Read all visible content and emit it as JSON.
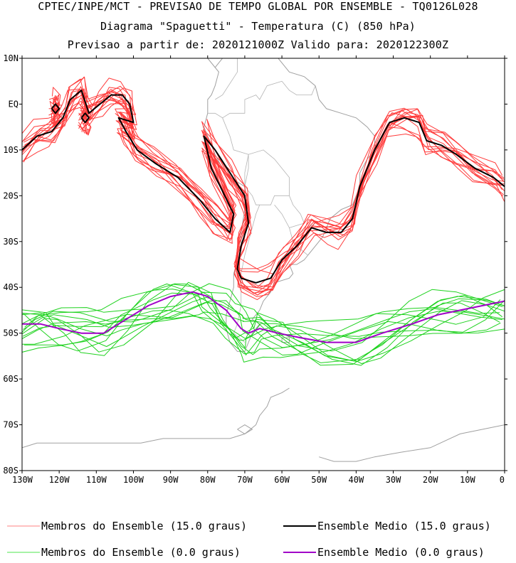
{
  "title": {
    "line1": "CPTEC/INPE/MCT - PREVISAO DE TEMPO GLOBAL POR ENSEMBLE - TQ0126L028",
    "line2": "Diagrama \"Spaguetti\" - Temperatura (C) (850 hPa)",
    "line3": "Previsao a partir de: 2020121000Z  Valido para: 2020122300Z"
  },
  "map": {
    "lon_range": [
      -130,
      0
    ],
    "lat_range": [
      -80,
      10
    ],
    "lat_ticks": [
      {
        "value": 10,
        "label": "10N"
      },
      {
        "value": 0,
        "label": "EQ"
      },
      {
        "value": -10,
        "label": "10S"
      },
      {
        "value": -20,
        "label": "20S"
      },
      {
        "value": -30,
        "label": "30S"
      },
      {
        "value": -40,
        "label": "40S"
      },
      {
        "value": -50,
        "label": "50S"
      },
      {
        "value": -60,
        "label": "60S"
      },
      {
        "value": -70,
        "label": "70S"
      },
      {
        "value": -80,
        "label": "80S"
      }
    ],
    "lon_ticks": [
      {
        "value": -130,
        "label": "130W"
      },
      {
        "value": -120,
        "label": "120W"
      },
      {
        "value": -110,
        "label": "110W"
      },
      {
        "value": -100,
        "label": "100W"
      },
      {
        "value": -90,
        "label": "90W"
      },
      {
        "value": -80,
        "label": "80W"
      },
      {
        "value": -70,
        "label": "70W"
      },
      {
        "value": -60,
        "label": "60W"
      },
      {
        "value": -50,
        "label": "50W"
      },
      {
        "value": -40,
        "label": "40W"
      },
      {
        "value": -30,
        "label": "30W"
      },
      {
        "value": -20,
        "label": "20W"
      },
      {
        "value": -10,
        "label": "10W"
      },
      {
        "value": 0,
        "label": "0"
      }
    ],
    "colors": {
      "members_15": "#ff3b3b",
      "mean_15": "#000000",
      "members_0": "#1ed21e",
      "mean_0": "#a000c8",
      "coast": "#a0a0a0"
    },
    "mean_15": [
      [
        [
          -130,
          -10
        ],
        [
          -126,
          -7
        ],
        [
          -122,
          -6
        ],
        [
          -119,
          -3
        ],
        [
          -117,
          1
        ],
        [
          -114,
          3
        ],
        [
          -112,
          -2
        ],
        [
          -109,
          0
        ],
        [
          -106,
          2
        ],
        [
          -103,
          2
        ],
        [
          -101,
          0
        ],
        [
          -100,
          -4
        ],
        [
          -104,
          -3
        ],
        [
          -102,
          -6
        ],
        [
          -99,
          -10
        ],
        [
          -94,
          -13
        ],
        [
          -88,
          -16
        ],
        [
          -82,
          -21
        ],
        [
          -78,
          -25
        ],
        [
          -74,
          -28
        ],
        [
          -73,
          -24
        ],
        [
          -79,
          -14
        ],
        [
          -81,
          -7
        ],
        [
          -78,
          -10
        ],
        [
          -74,
          -15
        ],
        [
          -70,
          -20
        ],
        [
          -69,
          -26
        ],
        [
          -71,
          -31
        ],
        [
          -72,
          -36
        ],
        [
          -71,
          -38
        ],
        [
          -67,
          -39
        ],
        [
          -63,
          -38
        ],
        [
          -60,
          -34
        ],
        [
          -56,
          -31
        ],
        [
          -52,
          -27
        ],
        [
          -48,
          -28
        ],
        [
          -44,
          -28
        ],
        [
          -41,
          -25
        ],
        [
          -39,
          -18
        ],
        [
          -35,
          -10
        ],
        [
          -31,
          -4
        ],
        [
          -27,
          -3
        ],
        [
          -23,
          -4
        ],
        [
          -21,
          -8
        ],
        [
          -17,
          -9
        ],
        [
          -13,
          -11
        ],
        [
          -8,
          -14
        ],
        [
          -3,
          -16
        ],
        [
          0,
          -18
        ]
      ],
      [
        [
          -114,
          -3
        ],
        [
          -113,
          -2
        ],
        [
          -112,
          -3
        ],
        [
          -113,
          -4
        ],
        [
          -114,
          -3
        ]
      ],
      [
        [
          -122,
          -1
        ],
        [
          -121,
          0
        ],
        [
          -120,
          -1
        ],
        [
          -121,
          -2
        ],
        [
          -122,
          -1
        ]
      ]
    ],
    "mean_0": [
      [
        [
          -130,
          -48
        ],
        [
          -125,
          -48
        ],
        [
          -120,
          -49
        ],
        [
          -114,
          -50
        ],
        [
          -108,
          -50
        ],
        [
          -102,
          -47
        ],
        [
          -96,
          -44
        ],
        [
          -90,
          -42
        ],
        [
          -84,
          -41
        ],
        [
          -80,
          -42
        ],
        [
          -75,
          -45
        ],
        [
          -71,
          -49
        ],
        [
          -69,
          -50
        ],
        [
          -66,
          -49
        ],
        [
          -61,
          -50
        ],
        [
          -55,
          -51
        ],
        [
          -48,
          -52
        ],
        [
          -40,
          -52
        ],
        [
          -33,
          -50
        ],
        [
          -25,
          -48
        ],
        [
          -18,
          -46
        ],
        [
          -12,
          -45
        ],
        [
          -6,
          -44
        ],
        [
          0,
          -43
        ]
      ]
    ],
    "coastline": [
      [
        [
          -80,
          10
        ],
        [
          -78,
          8
        ],
        [
          -77,
          9
        ],
        [
          -75,
          11
        ],
        [
          -72,
          12
        ],
        [
          -68,
          11
        ],
        [
          -64,
          10
        ],
        [
          -61,
          10
        ],
        [
          -58,
          7
        ],
        [
          -54,
          6
        ],
        [
          -51,
          4
        ],
        [
          -50,
          1
        ],
        [
          -48,
          -1
        ],
        [
          -44,
          -2
        ],
        [
          -40,
          -3
        ],
        [
          -37,
          -5
        ],
        [
          -35,
          -7
        ],
        [
          -35,
          -10
        ],
        [
          -37,
          -12
        ],
        [
          -39,
          -15
        ],
        [
          -39,
          -18
        ],
        [
          -40,
          -20
        ],
        [
          -41,
          -22
        ],
        [
          -44,
          -23
        ],
        [
          -47,
          -25
        ],
        [
          -48,
          -27
        ],
        [
          -49,
          -29
        ],
        [
          -51,
          -31
        ],
        [
          -53,
          -33
        ],
        [
          -54,
          -34
        ],
        [
          -56,
          -35
        ],
        [
          -58,
          -35
        ],
        [
          -57,
          -37
        ],
        [
          -58,
          -38
        ],
        [
          -62,
          -39
        ],
        [
          -63,
          -41
        ],
        [
          -65,
          -43
        ],
        [
          -66,
          -45
        ],
        [
          -68,
          -47
        ],
        [
          -66,
          -48
        ],
        [
          -68,
          -50
        ],
        [
          -69,
          -52
        ],
        [
          -70,
          -54
        ],
        [
          -72,
          -54
        ],
        [
          -74,
          -52
        ],
        [
          -75,
          -49
        ],
        [
          -75,
          -46
        ],
        [
          -74,
          -43
        ],
        [
          -73,
          -40
        ],
        [
          -73,
          -37
        ],
        [
          -71,
          -32
        ],
        [
          -71,
          -28
        ],
        [
          -70,
          -23
        ],
        [
          -70,
          -18
        ],
        [
          -74,
          -16
        ],
        [
          -76,
          -14
        ],
        [
          -78,
          -11
        ],
        [
          -80,
          -7
        ],
        [
          -81,
          -5
        ],
        [
          -80,
          -2
        ],
        [
          -80,
          1
        ],
        [
          -79,
          2
        ],
        [
          -78,
          4
        ],
        [
          -77,
          7
        ],
        [
          -80,
          10
        ]
      ],
      [
        [
          -58,
          -62
        ],
        [
          -60,
          -63
        ],
        [
          -63,
          -64
        ],
        [
          -64,
          -66
        ],
        [
          -66,
          -68
        ],
        [
          -67,
          -70
        ],
        [
          -70,
          -72
        ],
        [
          -74,
          -73
        ],
        [
          -80,
          -73
        ],
        [
          -86,
          -73
        ],
        [
          -92,
          -73
        ],
        [
          -98,
          -74
        ],
        [
          -104,
          -74
        ],
        [
          -110,
          -74
        ],
        [
          -118,
          -74
        ],
        [
          -126,
          -74
        ],
        [
          -130,
          -75
        ]
      ],
      [
        [
          -50,
          -77
        ],
        [
          -46,
          -78
        ],
        [
          -40,
          -78
        ],
        [
          -35,
          -77
        ],
        [
          -28,
          -76
        ],
        [
          -20,
          -75
        ],
        [
          -12,
          -72
        ],
        [
          -6,
          -71
        ],
        [
          0,
          -70
        ]
      ],
      [
        [
          -72,
          -71
        ],
        [
          -70,
          -70
        ],
        [
          -68,
          -71
        ],
        [
          -70,
          -72
        ],
        [
          -72,
          -71
        ]
      ],
      [
        [
          -60,
          -51
        ],
        [
          -58,
          -51
        ],
        [
          -58,
          -52
        ],
        [
          -60,
          -52
        ],
        [
          -60,
          -51
        ]
      ]
    ],
    "borders": [
      [
        [
          -70,
          -18
        ],
        [
          -68,
          -20
        ],
        [
          -67,
          -22
        ],
        [
          -66,
          -22
        ],
        [
          -63,
          -22
        ],
        [
          -62,
          -20
        ],
        [
          -58,
          -20
        ],
        [
          -58,
          -16
        ],
        [
          -60,
          -14
        ],
        [
          -62,
          -12
        ],
        [
          -65,
          -10
        ],
        [
          -69,
          -11
        ],
        [
          -69,
          -14
        ],
        [
          -70,
          -18
        ]
      ],
      [
        [
          -70,
          -18
        ],
        [
          -70,
          -15
        ],
        [
          -69,
          -11
        ],
        [
          -73,
          -10
        ],
        [
          -74,
          -7
        ],
        [
          -76,
          -3
        ],
        [
          -78,
          -2
        ],
        [
          -80,
          -2
        ]
      ],
      [
        [
          -76,
          -3
        ],
        [
          -74,
          -2
        ],
        [
          -70,
          -2
        ],
        [
          -70,
          1
        ],
        [
          -67,
          2
        ],
        [
          -66,
          1
        ],
        [
          -64,
          4
        ],
        [
          -60,
          5
        ]
      ],
      [
        [
          -78,
          1
        ],
        [
          -76,
          2
        ],
        [
          -72,
          7
        ],
        [
          -72,
          10
        ],
        [
          -71,
          12
        ]
      ],
      [
        [
          -58,
          -20
        ],
        [
          -57,
          -22
        ],
        [
          -55,
          -24
        ],
        [
          -54,
          -26
        ],
        [
          -58,
          -27
        ],
        [
          -60,
          -24
        ],
        [
          -62,
          -22
        ]
      ],
      [
        [
          -58,
          -27
        ],
        [
          -57,
          -30
        ],
        [
          -56,
          -31
        ],
        [
          -53,
          -33
        ],
        [
          -54,
          -34
        ]
      ],
      [
        [
          -66,
          -22
        ],
        [
          -67,
          -24
        ],
        [
          -68,
          -27
        ],
        [
          -69,
          -30
        ],
        [
          -70,
          -33
        ],
        [
          -71,
          -37
        ],
        [
          -71,
          -40
        ],
        [
          -71,
          -44
        ],
        [
          -72,
          -48
        ],
        [
          -73,
          -50
        ],
        [
          -70,
          -52
        ]
      ],
      [
        [
          -60,
          5
        ],
        [
          -58,
          3
        ],
        [
          -56,
          2
        ],
        [
          -54,
          2
        ],
        [
          -52,
          2
        ],
        [
          -51,
          4
        ]
      ],
      [
        [
          -57,
          -30
        ],
        [
          -55,
          -28
        ],
        [
          -53,
          -27
        ],
        [
          -51,
          -26
        ]
      ]
    ]
  },
  "legend": {
    "items": [
      {
        "label": "Membros do Ensemble (15.0 graus)",
        "color": "#ff8080",
        "width": 1
      },
      {
        "label": "Ensemble Medio (15.0 graus)",
        "color": "#000000",
        "width": 2
      },
      {
        "label": "Membros do Ensemble (0.0 graus)",
        "color": "#4ee64e",
        "width": 1
      },
      {
        "label": "Ensemble Medio (0.0 graus)",
        "color": "#a000c8",
        "width": 2
      }
    ]
  }
}
